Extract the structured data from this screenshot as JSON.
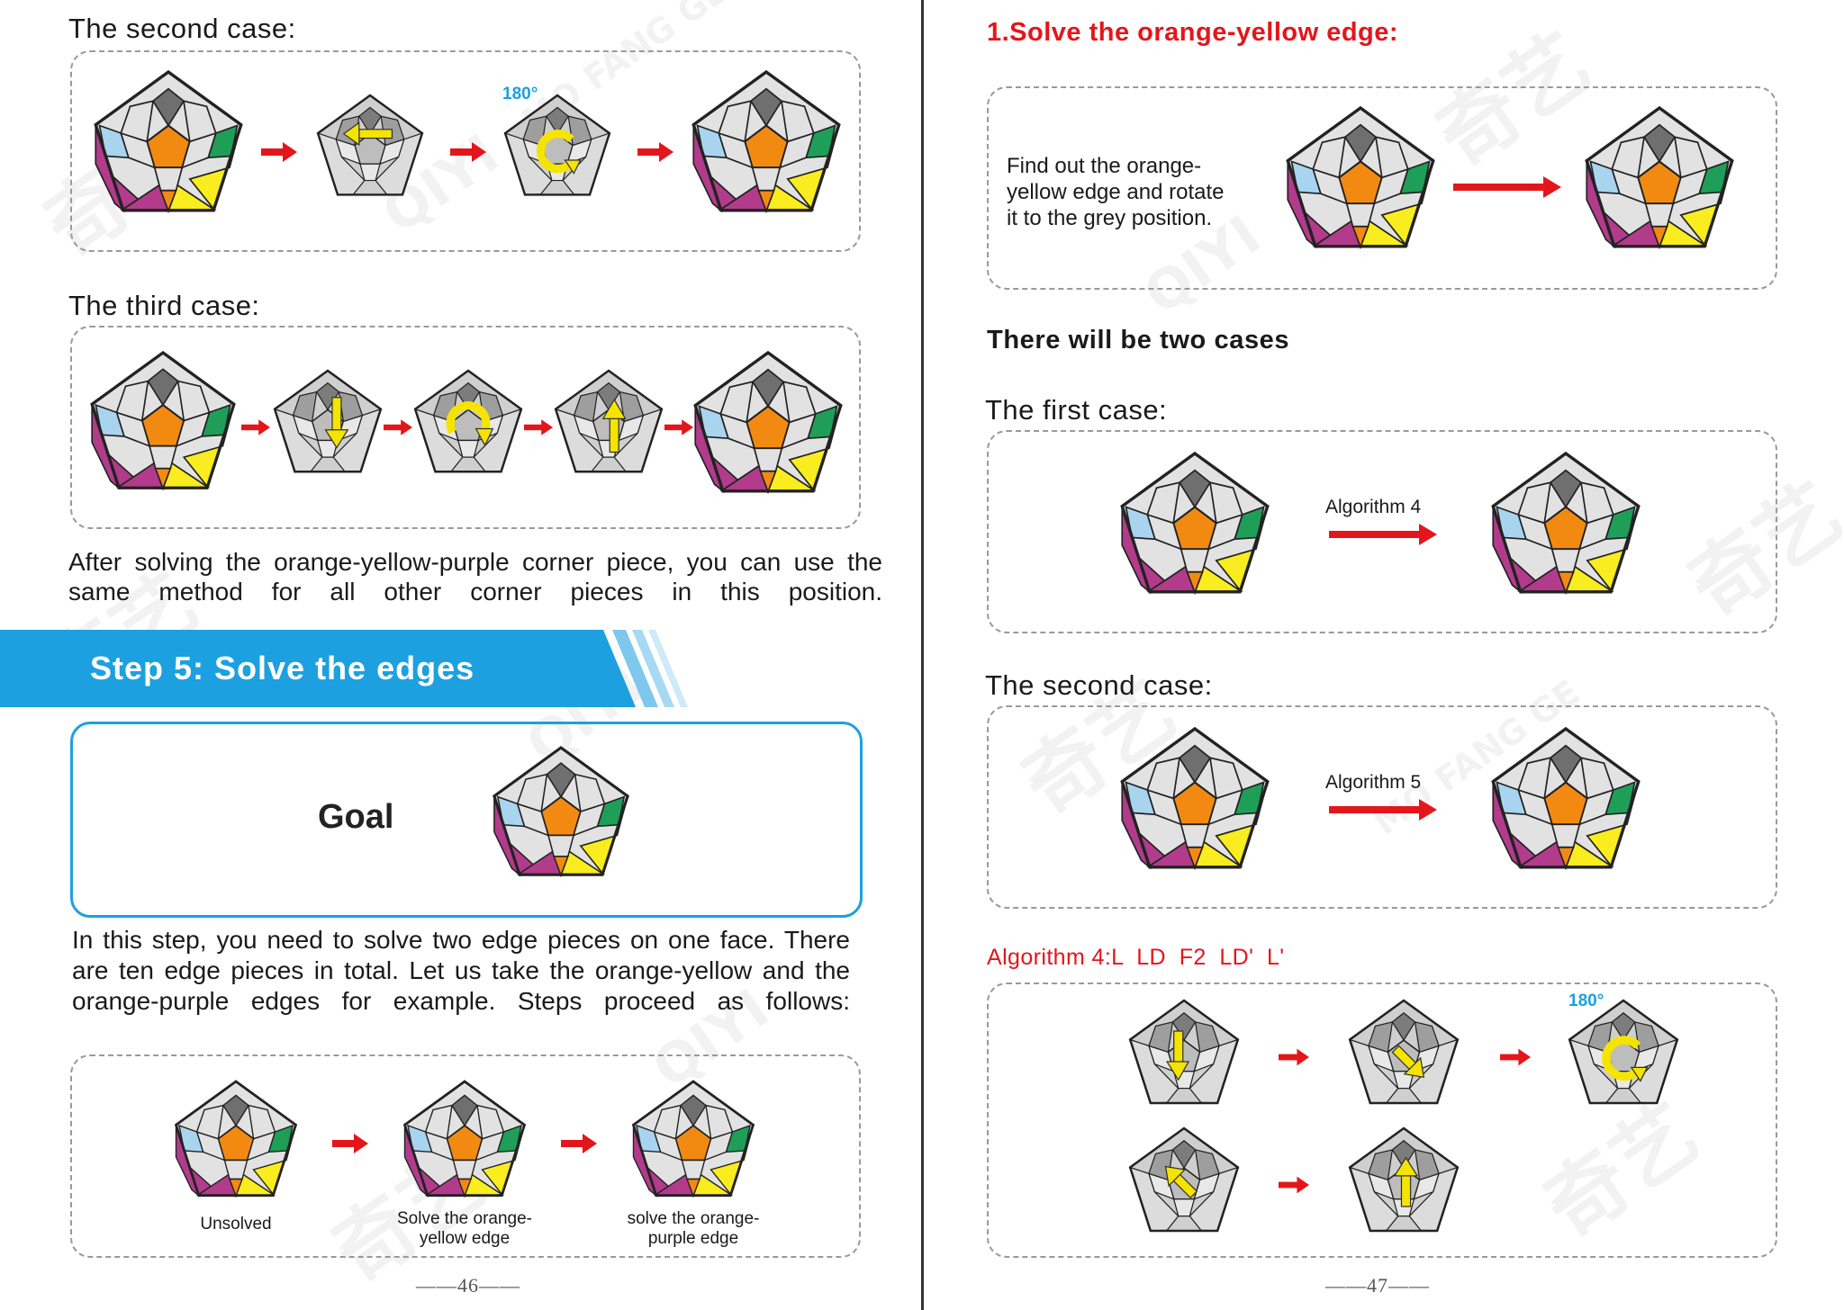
{
  "left": {
    "second_case_title": "The second case:",
    "angle_label": "180°",
    "third_case_title": "The third case:",
    "corner_note": "After solving the orange-yellow-purple corner piece, you can use the same method for all other corner pieces in this position.",
    "step_banner": "Step 5: Solve the edges",
    "goal_label": "Goal",
    "intro": "In this step, you need to solve two edge pieces on one face. There are ten edge pieces in total. Let us take the orange-yellow and the orange-purple edges for example. Steps proceed as follows:",
    "captions": {
      "unsolved": "Unsolved",
      "solve_orange_yellow": [
        "Solve the orange-",
        "yellow edge"
      ],
      "solve_orange_purple": [
        "solve the orange-",
        "purple edge"
      ]
    },
    "page_number": "——46——"
  },
  "right": {
    "heading": "1.Solve the orange-yellow edge:",
    "find_text": [
      "Find out the orange-",
      "yellow edge and rotate",
      "it to the grey position."
    ],
    "two_cases": "There will be two cases",
    "first_case_title": "The first case:",
    "algorithm4_label": "Algorithm 4",
    "second_case_title": "The second case:",
    "algorithm5_label": "Algorithm 5",
    "algorithm4_steps": "Algorithm 4:L  LD  F2  LD'  L'",
    "angle_label": "180°",
    "page_number": "——47——"
  },
  "watermark": {
    "brand_cn": "奇艺",
    "brand_en": "QIYI",
    "mofang": "MO FANG GE"
  },
  "colors": {
    "accent_red": "#e3161b",
    "banner_blue": "#1ca0e0",
    "goal_border": "#1ca0e0",
    "angle_blue": "#1ca0e0",
    "sticker_orange": "#f28a12",
    "sticker_yellow": "#f9ec1f",
    "sticker_purple": "#b23b8c",
    "sticker_green": "#1f9e57",
    "sticker_lightblue": "#a9d4f0",
    "sticker_grey": "#d9d9d9",
    "move_arrow_yellow": "#f5e400"
  }
}
